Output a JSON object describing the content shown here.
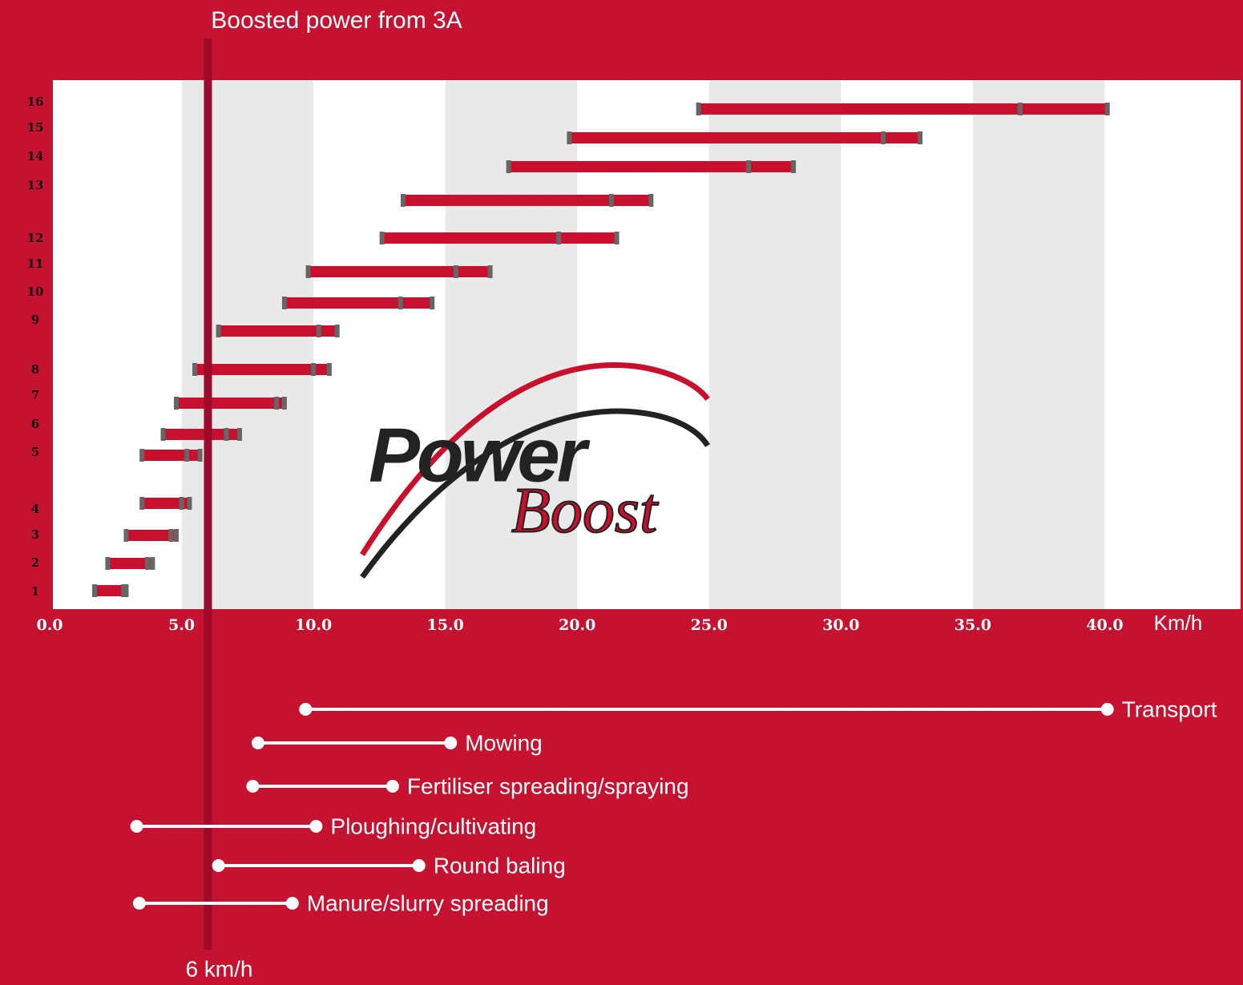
{
  "chart_data": {
    "type": "range-bar",
    "title": "Boosted power from 3A",
    "x_label": "Km/h",
    "xlim": [
      0,
      45
    ],
    "xticks": [
      {
        "value": 0,
        "label": "0.0"
      },
      {
        "value": 5,
        "label": "5.0"
      },
      {
        "value": 10,
        "label": "10.0"
      },
      {
        "value": 15,
        "label": "15.0"
      },
      {
        "value": 20,
        "label": "20.0"
      },
      {
        "value": 25,
        "label": "25.0"
      },
      {
        "value": 30,
        "label": "30.0"
      },
      {
        "value": 35,
        "label": "35.0"
      },
      {
        "value": 40,
        "label": "40.0"
      }
    ],
    "bar_color": "#c8102e",
    "marker_color": "#666666",
    "band_color": "#e8e9e8",
    "gears": [
      {
        "label": "16",
        "from": 24.6,
        "mid": 36.8,
        "to": 40.1
      },
      {
        "label": "15",
        "from": 19.7,
        "mid": 31.6,
        "to": 33.0
      },
      {
        "label": "14",
        "from": 17.4,
        "mid": 26.5,
        "to": 28.2
      },
      {
        "label": "13",
        "from": 13.4,
        "mid": 21.3,
        "to": 22.8
      },
      {
        "label": "12",
        "from": 12.6,
        "mid": 19.3,
        "to": 21.5
      },
      {
        "label": "11",
        "from": 9.8,
        "mid": 15.4,
        "to": 16.7
      },
      {
        "label": "10",
        "from": 8.9,
        "mid": 13.3,
        "to": 14.5
      },
      {
        "label": "9",
        "from": 6.4,
        "mid": 10.2,
        "to": 10.9
      },
      {
        "label": "8",
        "from": 5.5,
        "mid": 10.0,
        "to": 10.6
      },
      {
        "label": "7",
        "from": 4.8,
        "mid": 8.6,
        "to": 8.9
      },
      {
        "label": "6",
        "from": 4.3,
        "mid": 6.7,
        "to": 7.2
      },
      {
        "label": "5",
        "from": 3.5,
        "mid": 5.2,
        "to": 5.7
      },
      {
        "label": "4",
        "from": 3.5,
        "mid": 5.0,
        "to": 5.3
      },
      {
        "label": "3",
        "from": 2.9,
        "mid": 4.6,
        "to": 4.8
      },
      {
        "label": "2",
        "from": 2.2,
        "mid": 3.7,
        "to": 3.9
      },
      {
        "label": "1",
        "from": 1.7,
        "mid": 2.8,
        "to": 2.9
      }
    ],
    "boost_line": {
      "value": 6,
      "label": "6 km/h",
      "color": "#9b0a2a"
    },
    "applications": [
      {
        "name": "Transport",
        "from": 9.7,
        "to": 40.1
      },
      {
        "name": "Mowing",
        "from": 7.9,
        "to": 15.2
      },
      {
        "name": "Fertiliser spreading/spraying",
        "from": 7.7,
        "to": 13.0
      },
      {
        "name": "Ploughing/cultivating",
        "from": 3.3,
        "to": 10.1
      },
      {
        "name": "Round baling",
        "from": 6.4,
        "to": 14.0
      },
      {
        "name": "Manure/slurry spreading",
        "from": 3.4,
        "to": 9.2
      }
    ],
    "logo": {
      "word1": "Power",
      "word2": "Boost"
    }
  }
}
